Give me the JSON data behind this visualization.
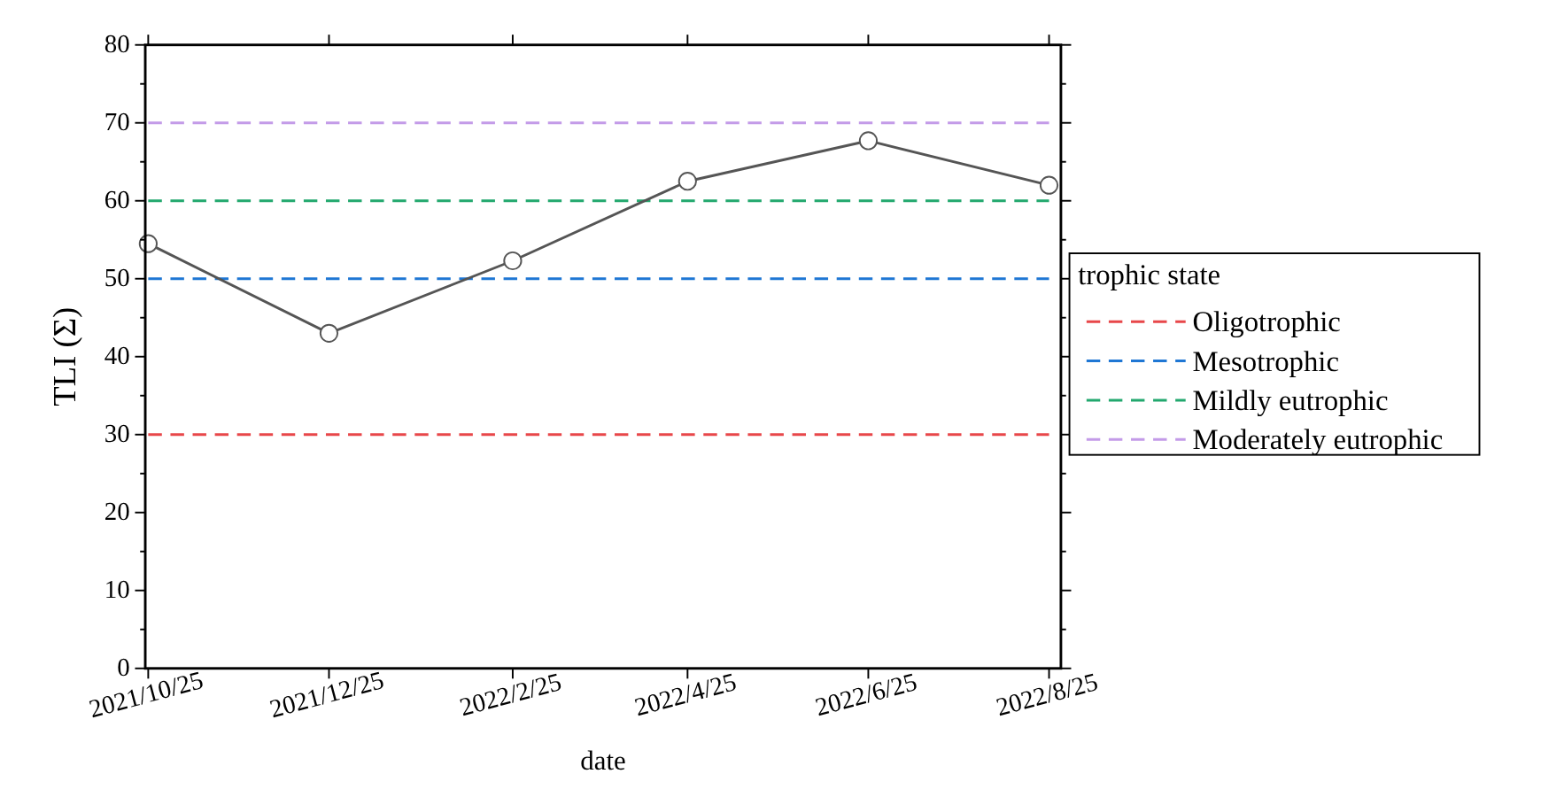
{
  "chart_data": {
    "type": "line",
    "xlabel": "date",
    "ylabel": "TLI (Σ)",
    "legend_title": "trophic state",
    "legend": "right",
    "grid": false,
    "x": [
      "2021-10-25",
      "2021-12-25",
      "2022-02-25",
      "2022-04-25",
      "2022-06-25",
      "2022-08-25"
    ],
    "xlim": [
      "2021-10-24",
      "2022-08-29"
    ],
    "xticks": [
      {
        "value": "2021-10-25",
        "label": "2021/10/25"
      },
      {
        "value": "2021-12-25",
        "label": "2021/12/25"
      },
      {
        "value": "2022-02-25",
        "label": "2022/2/25"
      },
      {
        "value": "2022-04-25",
        "label": "2022/4/25"
      },
      {
        "value": "2022-06-25",
        "label": "2022/6/25"
      },
      {
        "value": "2022-08-25",
        "label": "2022/8/25"
      }
    ],
    "ylim": [
      0,
      80
    ],
    "yticks": [
      0,
      10,
      20,
      30,
      40,
      50,
      60,
      70,
      80
    ],
    "series": [
      {
        "color": "#555555",
        "marker": "circle",
        "line_style": "solid",
        "values": [
          54.5,
          43,
          52.3,
          62.5,
          67.7,
          62
        ]
      },
      {
        "name": "Oligotrophic",
        "color": "#e8474a",
        "marker": "none",
        "line_style": "dashed",
        "values": [
          30,
          30,
          30,
          30,
          30,
          30
        ]
      },
      {
        "name": "Mesotrophic",
        "color": "#1f77d4",
        "marker": "none",
        "line_style": "dashed",
        "values": [
          50,
          50,
          50,
          50,
          50,
          50
        ]
      },
      {
        "name": "Mildly eutrophic",
        "color": "#22a86e",
        "marker": "none",
        "line_style": "dashed",
        "values": [
          60,
          60,
          60,
          60,
          60,
          60
        ]
      },
      {
        "name": "Moderately eutrophic",
        "color": "#c39be8",
        "marker": "none",
        "line_style": "dashed",
        "values": [
          70,
          70,
          70,
          70,
          70,
          70
        ]
      }
    ]
  }
}
